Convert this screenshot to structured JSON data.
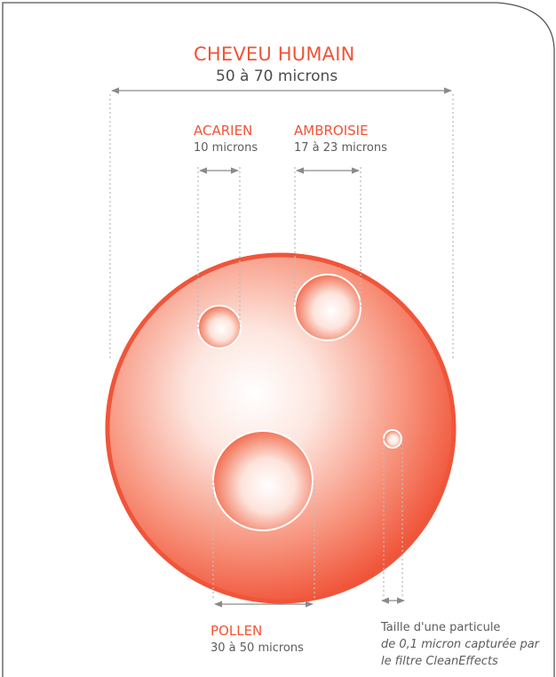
{
  "hair": {
    "title": "CHEVEU HUMAIN",
    "size": "50 à 70 microns"
  },
  "acarien": {
    "title": "ACARIEN",
    "size": "10 microns"
  },
  "ambroisie": {
    "title": "AMBROISIE",
    "size": "17 à 23 microns"
  },
  "pollen": {
    "title": "POLLEN",
    "size": "30 à 50 microns"
  },
  "particle": {
    "line1": "Taille d'une particule",
    "line2": "de 0,1 micron capturée par",
    "line3": "le filtre CleanEffects"
  },
  "colors": {
    "accent": "#ef5436",
    "circle_edge": "#f0553a",
    "arrow": "#8a8a8a",
    "dotted_guide": "#bdbdbd",
    "frame": "#555555"
  }
}
